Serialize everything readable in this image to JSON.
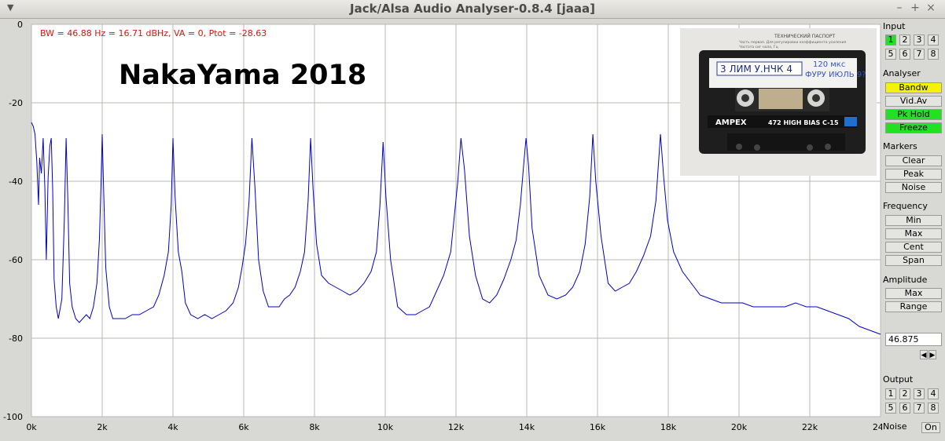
{
  "window": {
    "title": "Jack/Alsa Audio Analyser-0.8.4  [jaaa]",
    "minimize_glyph": "–",
    "maximize_glyph": "+",
    "close_glyph": "×",
    "menu_glyph": "▼"
  },
  "info_line": "BW = 46.88 Hz = 16.71 dBHz, VA = 0, Ptot = -28.63",
  "overlay_text": "NakaYama 2018",
  "cassette": {
    "passport_title": "ТЕХНИЧЕСКИЙ ПАСПОРТ",
    "passport_line1": "Часть первая. Для регулировки коэффициента усиления",
    "passport_line2": "Частота сиг нала, Гц",
    "label_left": "3 ЛИМ  У.НЧК 4",
    "label_right_top": "120 мкс",
    "label_right_bottom": "ФУРУ ИЮЛЬ 9?",
    "brand": "AMPEX",
    "model": "472 HIGH BIAS C-15"
  },
  "colors": {
    "trace": "#0000c8",
    "info": "#e01010",
    "grid": "#b8b8b4",
    "plot_bg": "#ffffff",
    "green": "#22e022",
    "yellow": "#f4f400"
  },
  "panel": {
    "input_label": "Input",
    "input_channels": [
      "1",
      "2",
      "3",
      "4",
      "5",
      "6",
      "7",
      "8"
    ],
    "input_active": "1",
    "analyser_label": "Analyser",
    "bandw": "Bandw",
    "vidav": "Vid.Av",
    "pkhold": "Pk Hold",
    "freeze": "Freeze",
    "markers_label": "Markers",
    "clear": "Clear",
    "peak": "Peak",
    "noise": "Noise",
    "frequency_label": "Frequency",
    "fmin": "Min",
    "fmax": "Max",
    "cent": "Cent",
    "span": "Span",
    "amplitude_label": "Amplitude",
    "amax": "Max",
    "range": "Range",
    "value": "46.875",
    "left_arrow": "◀",
    "right_arrow": "▶",
    "output_label": "Output",
    "output_channels": [
      "1",
      "2",
      "3",
      "4",
      "5",
      "6",
      "7",
      "8"
    ],
    "noise_label": "Noise",
    "noise_on": "On"
  },
  "chart_data": {
    "type": "line",
    "title": "",
    "xlabel": "",
    "ylabel": "",
    "xlim": [
      0,
      24000
    ],
    "ylim": [
      -100,
      0
    ],
    "x_ticks": [
      "0k",
      "2k",
      "4k",
      "6k",
      "8k",
      "10k",
      "12k",
      "14k",
      "16k",
      "18k",
      "20k",
      "22k",
      "24k"
    ],
    "y_ticks": [
      "0",
      "-20",
      "-40",
      "-60",
      "-80",
      "-100"
    ],
    "grid": true,
    "series": [
      {
        "name": "",
        "points": [
          [
            0,
            -25
          ],
          [
            50,
            -26
          ],
          [
            100,
            -28
          ],
          [
            150,
            -35
          ],
          [
            200,
            -46
          ],
          [
            230,
            -34
          ],
          [
            280,
            -38
          ],
          [
            330,
            -29
          ],
          [
            380,
            -42
          ],
          [
            420,
            -60
          ],
          [
            470,
            -39
          ],
          [
            520,
            -31
          ],
          [
            560,
            -29
          ],
          [
            600,
            -42
          ],
          [
            640,
            -65
          ],
          [
            700,
            -72
          ],
          [
            760,
            -75
          ],
          [
            800,
            -73
          ],
          [
            860,
            -70
          ],
          [
            930,
            -50
          ],
          [
            980,
            -29
          ],
          [
            1030,
            -45
          ],
          [
            1080,
            -66
          ],
          [
            1150,
            -72
          ],
          [
            1250,
            -75
          ],
          [
            1350,
            -76
          ],
          [
            1450,
            -75
          ],
          [
            1550,
            -74
          ],
          [
            1650,
            -75
          ],
          [
            1750,
            -72
          ],
          [
            1850,
            -66
          ],
          [
            1920,
            -55
          ],
          [
            1970,
            -40
          ],
          [
            2000,
            -28
          ],
          [
            2040,
            -42
          ],
          [
            2100,
            -62
          ],
          [
            2200,
            -72
          ],
          [
            2300,
            -75
          ],
          [
            2450,
            -75
          ],
          [
            2650,
            -75
          ],
          [
            2850,
            -74
          ],
          [
            3050,
            -74
          ],
          [
            3250,
            -73
          ],
          [
            3450,
            -72
          ],
          [
            3600,
            -69
          ],
          [
            3750,
            -64
          ],
          [
            3870,
            -58
          ],
          [
            3950,
            -46
          ],
          [
            4000,
            -29
          ],
          [
            4060,
            -44
          ],
          [
            4150,
            -58
          ],
          [
            4250,
            -63
          ],
          [
            4350,
            -71
          ],
          [
            4500,
            -74
          ],
          [
            4700,
            -75
          ],
          [
            4900,
            -74
          ],
          [
            5100,
            -75
          ],
          [
            5300,
            -74
          ],
          [
            5500,
            -73
          ],
          [
            5700,
            -71
          ],
          [
            5850,
            -67
          ],
          [
            5950,
            -62
          ],
          [
            6050,
            -56
          ],
          [
            6150,
            -45
          ],
          [
            6230,
            -29
          ],
          [
            6320,
            -42
          ],
          [
            6420,
            -60
          ],
          [
            6550,
            -68
          ],
          [
            6700,
            -72
          ],
          [
            6850,
            -72
          ],
          [
            7000,
            -72
          ],
          [
            7150,
            -70
          ],
          [
            7300,
            -69
          ],
          [
            7450,
            -67
          ],
          [
            7600,
            -63
          ],
          [
            7720,
            -58
          ],
          [
            7820,
            -45
          ],
          [
            7890,
            -29
          ],
          [
            7960,
            -42
          ],
          [
            8060,
            -56
          ],
          [
            8200,
            -64
          ],
          [
            8400,
            -66
          ],
          [
            8600,
            -67
          ],
          [
            8800,
            -68
          ],
          [
            9000,
            -69
          ],
          [
            9200,
            -68
          ],
          [
            9400,
            -66
          ],
          [
            9600,
            -63
          ],
          [
            9750,
            -58
          ],
          [
            9850,
            -46
          ],
          [
            9940,
            -30
          ],
          [
            10020,
            -44
          ],
          [
            10150,
            -60
          ],
          [
            10350,
            -72
          ],
          [
            10600,
            -74
          ],
          [
            10850,
            -74
          ],
          [
            11050,
            -73
          ],
          [
            11250,
            -72
          ],
          [
            11450,
            -68
          ],
          [
            11650,
            -64
          ],
          [
            11850,
            -58
          ],
          [
            11950,
            -49
          ],
          [
            12050,
            -40
          ],
          [
            12140,
            -29
          ],
          [
            12240,
            -37
          ],
          [
            12380,
            -54
          ],
          [
            12550,
            -64
          ],
          [
            12750,
            -70
          ],
          [
            12950,
            -71
          ],
          [
            13150,
            -69
          ],
          [
            13350,
            -65
          ],
          [
            13550,
            -60
          ],
          [
            13700,
            -55
          ],
          [
            13820,
            -46
          ],
          [
            13910,
            -36
          ],
          [
            13980,
            -29
          ],
          [
            14050,
            -36
          ],
          [
            14150,
            -52
          ],
          [
            14350,
            -64
          ],
          [
            14600,
            -69
          ],
          [
            14850,
            -70
          ],
          [
            15100,
            -69
          ],
          [
            15300,
            -67
          ],
          [
            15500,
            -63
          ],
          [
            15650,
            -56
          ],
          [
            15780,
            -44
          ],
          [
            15870,
            -28
          ],
          [
            15950,
            -40
          ],
          [
            16100,
            -54
          ],
          [
            16300,
            -66
          ],
          [
            16500,
            -68
          ],
          [
            16700,
            -67
          ],
          [
            16900,
            -66
          ],
          [
            17100,
            -63
          ],
          [
            17300,
            -59
          ],
          [
            17500,
            -54
          ],
          [
            17650,
            -45
          ],
          [
            17780,
            -28
          ],
          [
            17870,
            -39
          ],
          [
            17980,
            -50
          ],
          [
            18150,
            -58
          ],
          [
            18400,
            -63
          ],
          [
            18650,
            -66
          ],
          [
            18900,
            -69
          ],
          [
            19200,
            -70
          ],
          [
            19500,
            -71
          ],
          [
            19800,
            -71
          ],
          [
            20100,
            -71
          ],
          [
            20400,
            -72
          ],
          [
            20700,
            -72
          ],
          [
            21000,
            -72
          ],
          [
            21300,
            -72
          ],
          [
            21600,
            -71
          ],
          [
            21900,
            -72
          ],
          [
            22200,
            -72
          ],
          [
            22500,
            -73
          ],
          [
            22800,
            -74
          ],
          [
            23100,
            -75
          ],
          [
            23400,
            -77
          ],
          [
            23700,
            -78
          ],
          [
            24000,
            -79
          ]
        ]
      }
    ]
  }
}
